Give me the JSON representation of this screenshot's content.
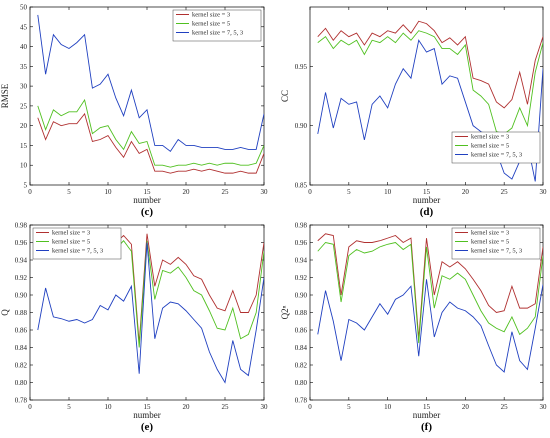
{
  "chart_data": [
    {
      "type": "line",
      "panel": "(c)",
      "xlabel": "number",
      "ylabel": "RMSE",
      "xlim": [
        0,
        30
      ],
      "ylim": [
        5,
        50
      ],
      "xticks": [
        0,
        5,
        10,
        15,
        20,
        25,
        30
      ],
      "yticks": [
        5,
        10,
        15,
        20,
        25,
        30,
        35,
        40,
        45,
        50
      ],
      "legend": "top-right",
      "x": [
        1,
        2,
        3,
        4,
        5,
        6,
        7,
        8,
        9,
        10,
        11,
        12,
        13,
        14,
        15,
        16,
        17,
        18,
        19,
        20,
        21,
        22,
        23,
        24,
        25,
        26,
        27,
        28,
        29,
        30
      ],
      "series": [
        {
          "name": "kernel size = 3",
          "color": "#b03030",
          "values": [
            22,
            16.5,
            21,
            20,
            20.5,
            20.5,
            23,
            16,
            16.5,
            17.5,
            14.5,
            12,
            16,
            13,
            14,
            8.5,
            8.5,
            8,
            8.5,
            8.5,
            9,
            8.5,
            9,
            8.5,
            8,
            8,
            8.5,
            8,
            8,
            13
          ]
        },
        {
          "name": "kernel size = 5",
          "color": "#50c020",
          "values": [
            25,
            19,
            24,
            22.5,
            23.5,
            23.5,
            26.5,
            18,
            19.5,
            20,
            16.5,
            14,
            18.5,
            15.5,
            16,
            10,
            10,
            9.5,
            10,
            10,
            10.5,
            10,
            10.5,
            10,
            10.5,
            10.5,
            10,
            10,
            10.5,
            15
          ]
        },
        {
          "name": "kernel size = 7, 5, 3",
          "color": "#2040c0",
          "values": [
            48,
            33,
            43,
            40.5,
            39.5,
            41,
            43,
            29.5,
            30.5,
            33,
            27,
            22.5,
            29,
            22,
            24,
            15,
            15,
            13.5,
            16.5,
            15,
            15,
            14.5,
            14.5,
            14.5,
            14,
            14,
            14.5,
            14,
            14,
            23
          ]
        }
      ]
    },
    {
      "type": "line",
      "panel": "(d)",
      "xlabel": "number",
      "ylabel": "CC",
      "xlim": [
        0,
        30
      ],
      "ylim": [
        0.85,
        1.0
      ],
      "xticks": [
        0,
        5,
        10,
        15,
        20,
        25,
        30
      ],
      "yticks": [
        0.85,
        0.9,
        0.95
      ],
      "legend": "bottom-right",
      "x": [
        1,
        2,
        3,
        4,
        5,
        6,
        7,
        8,
        9,
        10,
        11,
        12,
        13,
        14,
        15,
        16,
        17,
        18,
        19,
        20,
        21,
        22,
        23,
        24,
        25,
        26,
        27,
        28,
        29,
        30
      ],
      "series": [
        {
          "name": "kernel size = 3",
          "color": "#b03030",
          "values": [
            0.975,
            0.982,
            0.972,
            0.98,
            0.975,
            0.978,
            0.968,
            0.978,
            0.975,
            0.98,
            0.978,
            0.985,
            0.978,
            0.988,
            0.986,
            0.98,
            0.97,
            0.974,
            0.968,
            0.975,
            0.94,
            0.938,
            0.935,
            0.92,
            0.915,
            0.922,
            0.945,
            0.918,
            0.955,
            0.975
          ]
        },
        {
          "name": "kernel size = 5",
          "color": "#50c020",
          "values": [
            0.97,
            0.975,
            0.965,
            0.972,
            0.968,
            0.972,
            0.96,
            0.972,
            0.97,
            0.975,
            0.97,
            0.978,
            0.972,
            0.98,
            0.978,
            0.975,
            0.965,
            0.965,
            0.96,
            0.968,
            0.93,
            0.925,
            0.918,
            0.895,
            0.893,
            0.898,
            0.915,
            0.9,
            0.945,
            0.97
          ]
        },
        {
          "name": "kernel size = 7, 5, 3",
          "color": "#2040c0",
          "values": [
            0.893,
            0.928,
            0.898,
            0.923,
            0.918,
            0.92,
            0.888,
            0.918,
            0.925,
            0.915,
            0.935,
            0.948,
            0.94,
            0.972,
            0.962,
            0.965,
            0.935,
            0.942,
            0.94,
            0.92,
            0.9,
            0.895,
            0.892,
            0.878,
            0.86,
            0.855,
            0.87,
            0.885,
            0.853,
            0.948
          ]
        }
      ]
    },
    {
      "type": "line",
      "panel": "(e)",
      "xlabel": "number",
      "ylabel": "Q",
      "xlim": [
        0,
        30
      ],
      "ylim": [
        0.78,
        0.98
      ],
      "xticks": [
        0,
        5,
        10,
        15,
        20,
        25,
        30
      ],
      "yticks": [
        0.78,
        0.8,
        0.82,
        0.84,
        0.86,
        0.88,
        0.9,
        0.92,
        0.94,
        0.96,
        0.98
      ],
      "legend": "top-left",
      "x": [
        1,
        2,
        3,
        4,
        5,
        6,
        7,
        8,
        9,
        10,
        11,
        12,
        13,
        14,
        15,
        16,
        17,
        18,
        19,
        20,
        21,
        22,
        23,
        24,
        25,
        26,
        27,
        28,
        29,
        30
      ],
      "series": [
        {
          "name": "kernel size = 3",
          "color": "#b03030",
          "values": [
            0.966,
            0.972,
            0.968,
            0.955,
            0.958,
            0.96,
            0.956,
            0.96,
            0.962,
            0.965,
            0.96,
            0.968,
            0.958,
            0.845,
            0.97,
            0.91,
            0.94,
            0.935,
            0.943,
            0.935,
            0.922,
            0.918,
            0.9,
            0.885,
            0.882,
            0.905,
            0.88,
            0.88,
            0.9,
            0.96
          ]
        },
        {
          "name": "kernel size = 5",
          "color": "#50c020",
          "values": [
            0.955,
            0.962,
            0.958,
            0.948,
            0.95,
            0.955,
            0.948,
            0.952,
            0.955,
            0.958,
            0.953,
            0.962,
            0.95,
            0.84,
            0.962,
            0.895,
            0.928,
            0.925,
            0.932,
            0.92,
            0.905,
            0.9,
            0.882,
            0.862,
            0.86,
            0.885,
            0.85,
            0.855,
            0.88,
            0.95
          ]
        },
        {
          "name": "kernel size = 7, 5, 3",
          "color": "#2040c0",
          "values": [
            0.86,
            0.908,
            0.875,
            0.873,
            0.87,
            0.872,
            0.868,
            0.872,
            0.888,
            0.883,
            0.9,
            0.893,
            0.91,
            0.81,
            0.96,
            0.85,
            0.885,
            0.892,
            0.89,
            0.882,
            0.872,
            0.862,
            0.835,
            0.815,
            0.8,
            0.848,
            0.815,
            0.808,
            0.86,
            0.92
          ]
        }
      ]
    },
    {
      "type": "line",
      "panel": "(f)",
      "xlabel": "number",
      "ylabel": "Q2ⁿ",
      "xlim": [
        0,
        30
      ],
      "ylim": [
        0.78,
        0.98
      ],
      "xticks": [
        0,
        5,
        10,
        15,
        20,
        25,
        30
      ],
      "yticks": [
        0.78,
        0.8,
        0.82,
        0.84,
        0.86,
        0.88,
        0.9,
        0.92,
        0.94,
        0.96,
        0.98
      ],
      "legend": "top-right",
      "x": [
        1,
        2,
        3,
        4,
        5,
        6,
        7,
        8,
        9,
        10,
        11,
        12,
        13,
        14,
        15,
        16,
        17,
        18,
        19,
        20,
        21,
        22,
        23,
        24,
        25,
        26,
        27,
        28,
        29,
        30
      ],
      "series": [
        {
          "name": "kernel size = 3",
          "color": "#b03030",
          "values": [
            0.962,
            0.97,
            0.968,
            0.9,
            0.955,
            0.962,
            0.96,
            0.96,
            0.962,
            0.965,
            0.968,
            0.96,
            0.965,
            0.85,
            0.965,
            0.9,
            0.938,
            0.932,
            0.938,
            0.93,
            0.918,
            0.905,
            0.888,
            0.88,
            0.882,
            0.91,
            0.885,
            0.885,
            0.89,
            0.955
          ]
        },
        {
          "name": "kernel size = 5",
          "color": "#50c020",
          "values": [
            0.95,
            0.96,
            0.958,
            0.892,
            0.945,
            0.952,
            0.948,
            0.95,
            0.955,
            0.958,
            0.96,
            0.952,
            0.958,
            0.845,
            0.955,
            0.885,
            0.922,
            0.918,
            0.925,
            0.918,
            0.9,
            0.882,
            0.868,
            0.862,
            0.858,
            0.875,
            0.855,
            0.862,
            0.875,
            0.945
          ]
        },
        {
          "name": "kernel size = 7, 5, 3",
          "color": "#2040c0",
          "values": [
            0.855,
            0.905,
            0.87,
            0.825,
            0.872,
            0.868,
            0.86,
            0.875,
            0.89,
            0.878,
            0.895,
            0.9,
            0.91,
            0.83,
            0.918,
            0.852,
            0.88,
            0.892,
            0.885,
            0.882,
            0.875,
            0.865,
            0.842,
            0.82,
            0.812,
            0.858,
            0.825,
            0.815,
            0.862,
            0.912
          ]
        }
      ]
    }
  ]
}
